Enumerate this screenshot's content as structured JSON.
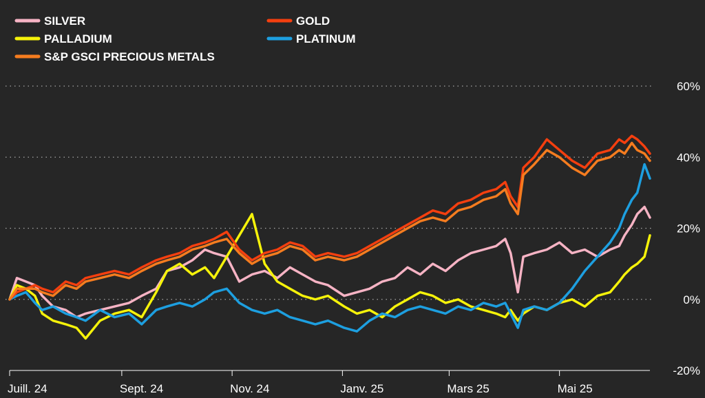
{
  "chart_data": {
    "type": "line",
    "title": "",
    "xlabel": "",
    "ylabel": "",
    "ylim": [
      -20,
      60
    ],
    "y_ticks": [
      60,
      40,
      20,
      0,
      -20
    ],
    "y_tick_labels": [
      "60%",
      "40%",
      "20%",
      "0%",
      "-20%"
    ],
    "x_tick_labels": [
      "Juill. 24",
      "Sept. 24",
      "Nov. 24",
      "Janv. 25",
      "Mars 25",
      "Mai 25"
    ],
    "x_tick_dates": [
      "2024-07-01",
      "2024-09-01",
      "2024-11-01",
      "2025-01-01",
      "2025-03-01",
      "2025-05-01"
    ],
    "x_range": [
      "2024-07-01",
      "2025-06-20"
    ],
    "grid": "dotted horizontal",
    "legend_position": "top-left",
    "series": [
      {
        "name": "SILVER",
        "color": "#f6b3c4",
        "x": [
          "2024-07-01",
          "2024-07-05",
          "2024-07-10",
          "2024-07-15",
          "2024-07-19",
          "2024-07-25",
          "2024-08-01",
          "2024-08-07",
          "2024-08-12",
          "2024-08-20",
          "2024-08-28",
          "2024-09-05",
          "2024-09-12",
          "2024-09-20",
          "2024-09-26",
          "2024-10-03",
          "2024-10-10",
          "2024-10-17",
          "2024-10-22",
          "2024-10-29",
          "2024-11-05",
          "2024-11-12",
          "2024-11-19",
          "2024-11-26",
          "2024-12-03",
          "2024-12-10",
          "2024-12-17",
          "2024-12-24",
          "2025-01-02",
          "2025-01-09",
          "2025-01-16",
          "2025-01-23",
          "2025-01-30",
          "2025-02-06",
          "2025-02-13",
          "2025-02-20",
          "2025-02-27",
          "2025-03-06",
          "2025-03-13",
          "2025-03-20",
          "2025-03-27",
          "2025-04-01",
          "2025-04-04",
          "2025-04-08",
          "2025-04-11",
          "2025-04-17",
          "2025-04-24",
          "2025-05-01",
          "2025-05-08",
          "2025-05-15",
          "2025-05-22",
          "2025-05-29",
          "2025-06-03",
          "2025-06-06",
          "2025-06-10",
          "2025-06-13",
          "2025-06-17",
          "2025-06-20"
        ],
        "values": [
          0,
          6,
          5,
          4,
          1,
          -2,
          -3,
          -5,
          -4,
          -3,
          -2,
          -1,
          1,
          3,
          8,
          9,
          11,
          14,
          13,
          12,
          5,
          7,
          8,
          6,
          9,
          7,
          5,
          4,
          1,
          2,
          3,
          5,
          6,
          9,
          7,
          10,
          8,
          11,
          13,
          14,
          15,
          17,
          13,
          2,
          12,
          13,
          14,
          16,
          13,
          14,
          12,
          14,
          15,
          18,
          21,
          24,
          26,
          23
        ]
      },
      {
        "name": "GOLD",
        "color": "#f43f0f",
        "x": [
          "2024-07-01",
          "2024-07-05",
          "2024-07-10",
          "2024-07-15",
          "2024-07-19",
          "2024-07-25",
          "2024-08-01",
          "2024-08-07",
          "2024-08-12",
          "2024-08-20",
          "2024-08-28",
          "2024-09-05",
          "2024-09-12",
          "2024-09-20",
          "2024-09-26",
          "2024-10-03",
          "2024-10-10",
          "2024-10-17",
          "2024-10-22",
          "2024-10-29",
          "2024-11-05",
          "2024-11-12",
          "2024-11-19",
          "2024-11-26",
          "2024-12-03",
          "2024-12-10",
          "2024-12-17",
          "2024-12-24",
          "2025-01-02",
          "2025-01-09",
          "2025-01-16",
          "2025-01-23",
          "2025-01-30",
          "2025-02-06",
          "2025-02-13",
          "2025-02-20",
          "2025-02-27",
          "2025-03-06",
          "2025-03-13",
          "2025-03-20",
          "2025-03-27",
          "2025-04-01",
          "2025-04-04",
          "2025-04-08",
          "2025-04-11",
          "2025-04-17",
          "2025-04-24",
          "2025-05-01",
          "2025-05-08",
          "2025-05-15",
          "2025-05-22",
          "2025-05-29",
          "2025-06-03",
          "2025-06-06",
          "2025-06-10",
          "2025-06-13",
          "2025-06-17",
          "2025-06-20"
        ],
        "values": [
          0,
          2,
          3,
          4,
          3,
          2,
          5,
          4,
          6,
          7,
          8,
          7,
          9,
          11,
          12,
          13,
          15,
          16,
          17,
          19,
          14,
          11,
          13,
          14,
          16,
          15,
          12,
          13,
          12,
          13,
          15,
          17,
          19,
          21,
          23,
          25,
          24,
          27,
          28,
          30,
          31,
          33,
          29,
          26,
          37,
          40,
          45,
          42,
          39,
          37,
          41,
          42,
          45,
          44,
          46,
          45,
          43,
          41
        ]
      },
      {
        "name": "PALLADIUM",
        "color": "#f5f20a",
        "x": [
          "2024-07-01",
          "2024-07-05",
          "2024-07-10",
          "2024-07-15",
          "2024-07-19",
          "2024-07-25",
          "2024-08-01",
          "2024-08-07",
          "2024-08-12",
          "2024-08-20",
          "2024-08-28",
          "2024-09-05",
          "2024-09-12",
          "2024-09-20",
          "2024-09-26",
          "2024-10-03",
          "2024-10-10",
          "2024-10-17",
          "2024-10-22",
          "2024-10-29",
          "2024-11-05",
          "2024-11-12",
          "2024-11-19",
          "2024-11-26",
          "2024-12-03",
          "2024-12-10",
          "2024-12-17",
          "2024-12-24",
          "2025-01-02",
          "2025-01-09",
          "2025-01-16",
          "2025-01-23",
          "2025-01-30",
          "2025-02-06",
          "2025-02-13",
          "2025-02-20",
          "2025-02-27",
          "2025-03-06",
          "2025-03-13",
          "2025-03-20",
          "2025-03-27",
          "2025-04-01",
          "2025-04-04",
          "2025-04-08",
          "2025-04-11",
          "2025-04-17",
          "2025-04-24",
          "2025-05-01",
          "2025-05-08",
          "2025-05-15",
          "2025-05-22",
          "2025-05-29",
          "2025-06-03",
          "2025-06-06",
          "2025-06-10",
          "2025-06-13",
          "2025-06-17",
          "2025-06-20"
        ],
        "values": [
          0,
          4,
          3,
          1,
          -4,
          -6,
          -7,
          -8,
          -11,
          -6,
          -4,
          -3,
          -5,
          2,
          8,
          10,
          7,
          9,
          6,
          12,
          18,
          24,
          10,
          5,
          3,
          1,
          0,
          1,
          -2,
          -4,
          -3,
          -5,
          -2,
          0,
          2,
          1,
          -1,
          0,
          -2,
          -3,
          -4,
          -5,
          -3,
          -6,
          -4,
          -2,
          -3,
          -1,
          0,
          -2,
          1,
          2,
          5,
          7,
          9,
          10,
          12,
          18
        ]
      },
      {
        "name": "PLATINUM",
        "color": "#1d9fe0",
        "x": [
          "2024-07-01",
          "2024-07-05",
          "2024-07-10",
          "2024-07-15",
          "2024-07-19",
          "2024-07-25",
          "2024-08-01",
          "2024-08-07",
          "2024-08-12",
          "2024-08-20",
          "2024-08-28",
          "2024-09-05",
          "2024-09-12",
          "2024-09-20",
          "2024-09-26",
          "2024-10-03",
          "2024-10-10",
          "2024-10-17",
          "2024-10-22",
          "2024-10-29",
          "2024-11-05",
          "2024-11-12",
          "2024-11-19",
          "2024-11-26",
          "2024-12-03",
          "2024-12-10",
          "2024-12-17",
          "2024-12-24",
          "2025-01-02",
          "2025-01-09",
          "2025-01-16",
          "2025-01-23",
          "2025-01-30",
          "2025-02-06",
          "2025-02-13",
          "2025-02-20",
          "2025-02-27",
          "2025-03-06",
          "2025-03-13",
          "2025-03-20",
          "2025-03-27",
          "2025-04-01",
          "2025-04-04",
          "2025-04-08",
          "2025-04-11",
          "2025-04-17",
          "2025-04-24",
          "2025-05-01",
          "2025-05-08",
          "2025-05-15",
          "2025-05-22",
          "2025-05-29",
          "2025-06-03",
          "2025-06-06",
          "2025-06-10",
          "2025-06-13",
          "2025-06-17",
          "2025-06-20"
        ],
        "values": [
          0,
          1,
          2,
          -1,
          -3,
          -2,
          -4,
          -5,
          -6,
          -3,
          -5,
          -4,
          -7,
          -3,
          -2,
          -1,
          -2,
          0,
          2,
          3,
          -1,
          -3,
          -4,
          -3,
          -5,
          -6,
          -7,
          -6,
          -8,
          -9,
          -6,
          -4,
          -5,
          -3,
          -2,
          -3,
          -4,
          -2,
          -3,
          -1,
          -2,
          -1,
          -4,
          -8,
          -3,
          -2,
          -3,
          -1,
          3,
          8,
          12,
          16,
          20,
          24,
          28,
          30,
          38,
          34
        ]
      },
      {
        "name": "S&P GSCI PRECIOUS METALS",
        "color": "#f57c1f",
        "x": [
          "2024-07-01",
          "2024-07-05",
          "2024-07-10",
          "2024-07-15",
          "2024-07-19",
          "2024-07-25",
          "2024-08-01",
          "2024-08-07",
          "2024-08-12",
          "2024-08-20",
          "2024-08-28",
          "2024-09-05",
          "2024-09-12",
          "2024-09-20",
          "2024-09-26",
          "2024-10-03",
          "2024-10-10",
          "2024-10-17",
          "2024-10-22",
          "2024-10-29",
          "2024-11-05",
          "2024-11-12",
          "2024-11-19",
          "2024-11-26",
          "2024-12-03",
          "2024-12-10",
          "2024-12-17",
          "2024-12-24",
          "2025-01-02",
          "2025-01-09",
          "2025-01-16",
          "2025-01-23",
          "2025-01-30",
          "2025-02-06",
          "2025-02-13",
          "2025-02-20",
          "2025-02-27",
          "2025-03-06",
          "2025-03-13",
          "2025-03-20",
          "2025-03-27",
          "2025-04-01",
          "2025-04-04",
          "2025-04-08",
          "2025-04-11",
          "2025-04-17",
          "2025-04-24",
          "2025-05-01",
          "2025-05-08",
          "2025-05-15",
          "2025-05-22",
          "2025-05-29",
          "2025-06-03",
          "2025-06-06",
          "2025-06-10",
          "2025-06-13",
          "2025-06-17",
          "2025-06-20"
        ],
        "values": [
          0,
          3,
          3,
          3,
          2,
          1,
          4,
          3,
          5,
          6,
          7,
          6,
          8,
          10,
          11,
          12,
          14,
          15,
          16,
          17,
          13,
          10,
          12,
          13,
          15,
          14,
          11,
          12,
          11,
          12,
          14,
          16,
          18,
          20,
          22,
          23,
          22,
          25,
          26,
          28,
          29,
          31,
          27,
          24,
          35,
          38,
          42,
          40,
          37,
          35,
          39,
          40,
          42,
          41,
          44,
          42,
          41,
          39
        ]
      }
    ]
  }
}
